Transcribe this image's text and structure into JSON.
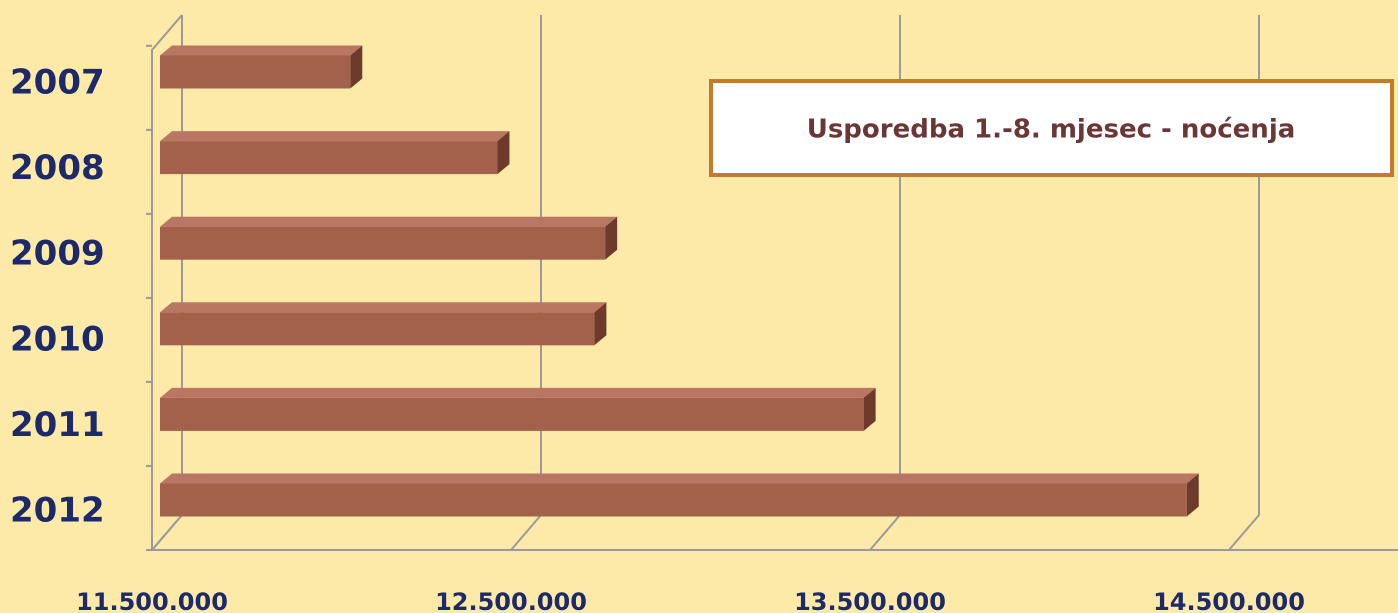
{
  "chart_data": {
    "type": "bar3d-horizontal",
    "title": "Usporedba 1.-8. mjesec - noćenja",
    "categories": [
      "2007",
      "2008",
      "2009",
      "2010",
      "2011",
      "2012"
    ],
    "values": [
      12030000,
      12440000,
      12740000,
      12710000,
      13460000,
      14360000
    ],
    "color": "#a3614b",
    "xlim": [
      11500000,
      15000000
    ],
    "xticks": [
      {
        "value": 11500000,
        "label": "11.500.000"
      },
      {
        "value": 12500000,
        "label": "12.500.000"
      },
      {
        "value": 13500000,
        "label": "13.500.000"
      },
      {
        "value": 14500000,
        "label": "14.500.000"
      }
    ],
    "grid": true
  }
}
